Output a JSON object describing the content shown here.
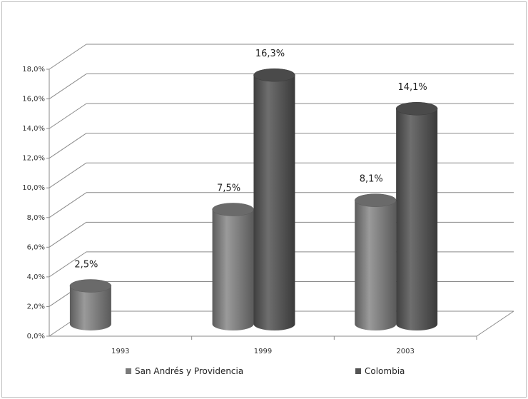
{
  "chart_data": {
    "type": "bar",
    "categories": [
      "1993",
      "1999",
      "2003"
    ],
    "series": [
      {
        "name": "San Andrés y Providencia",
        "values": [
          2.5,
          7.5,
          8.1
        ],
        "labels": [
          "2,5%",
          "7,5%",
          "8,1%"
        ],
        "color": "#7a7a7a"
      },
      {
        "name": "Colombia",
        "values": [
          null,
          16.3,
          14.1
        ],
        "labels": [
          "",
          "16,3%",
          "14,1%"
        ],
        "color": "#545454"
      }
    ],
    "ylim": [
      0,
      18
    ],
    "yticks": [
      "0,0%",
      "2,0%",
      "4,0%",
      "6,0%",
      "8,0%",
      "10,0%",
      "12,0%",
      "14,0%",
      "16,0%",
      "18,0%"
    ],
    "xlabel": "",
    "ylabel": "",
    "grid": true,
    "legend_position": "bottom",
    "style": "3d-cylinder"
  }
}
